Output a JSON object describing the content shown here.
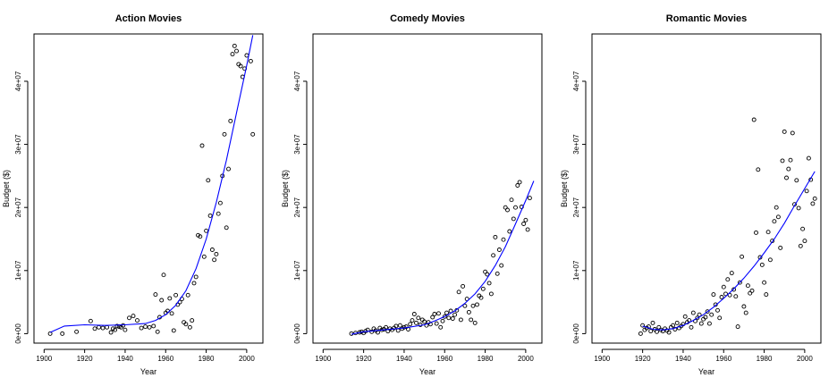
{
  "chart_data": [
    {
      "type": "scatter",
      "title": "Action Movies",
      "xlabel": "Year",
      "ylabel": "Budget ($)",
      "xlim": [
        1895,
        2008
      ],
      "ylim": [
        -1500000,
        47500000
      ],
      "xticks": [
        1900,
        1920,
        1940,
        1960,
        1980,
        2000
      ],
      "yticks": [
        0,
        10000000,
        20000000,
        30000000,
        40000000
      ],
      "ytick_labels": [
        "0e+00",
        "1e+07",
        "2e+07",
        "3e+07",
        "4e+07"
      ],
      "grid": false,
      "points_color": "#000000",
      "smooth_color": "#0000ff",
      "points": [
        [
          1903,
          0
        ],
        [
          1909,
          0
        ],
        [
          1916,
          300000
        ],
        [
          1923,
          2000000
        ],
        [
          1925,
          800000
        ],
        [
          1927,
          1000000
        ],
        [
          1929,
          900000
        ],
        [
          1931,
          1000000
        ],
        [
          1933,
          200000
        ],
        [
          1934,
          800000
        ],
        [
          1935,
          600000
        ],
        [
          1936,
          1200000
        ],
        [
          1937,
          1100000
        ],
        [
          1938,
          1000000
        ],
        [
          1939,
          1300000
        ],
        [
          1940,
          600000
        ],
        [
          1942,
          2500000
        ],
        [
          1944,
          2800000
        ],
        [
          1946,
          2100000
        ],
        [
          1948,
          900000
        ],
        [
          1950,
          1100000
        ],
        [
          1952,
          1000000
        ],
        [
          1954,
          1200000
        ],
        [
          1955,
          6200000
        ],
        [
          1956,
          300000
        ],
        [
          1957,
          2600000
        ],
        [
          1958,
          5300000
        ],
        [
          1959,
          9300000
        ],
        [
          1960,
          3300000
        ],
        [
          1961,
          3600000
        ],
        [
          1962,
          5600000
        ],
        [
          1963,
          3200000
        ],
        [
          1964,
          500000
        ],
        [
          1965,
          6100000
        ],
        [
          1966,
          4600000
        ],
        [
          1967,
          5000000
        ],
        [
          1968,
          5500000
        ],
        [
          1969,
          1800000
        ],
        [
          1970,
          1500000
        ],
        [
          1971,
          6100000
        ],
        [
          1972,
          1000000
        ],
        [
          1973,
          2100000
        ],
        [
          1974,
          8000000
        ],
        [
          1975,
          9000000
        ],
        [
          1976,
          15600000
        ],
        [
          1977,
          15400000
        ],
        [
          1978,
          29800000
        ],
        [
          1979,
          12200000
        ],
        [
          1980,
          16300000
        ],
        [
          1981,
          24300000
        ],
        [
          1982,
          18700000
        ],
        [
          1983,
          13300000
        ],
        [
          1984,
          11700000
        ],
        [
          1985,
          12600000
        ],
        [
          1986,
          19000000
        ],
        [
          1987,
          20700000
        ],
        [
          1988,
          25000000
        ],
        [
          1989,
          31600000
        ],
        [
          1990,
          16800000
        ],
        [
          1991,
          26100000
        ],
        [
          1992,
          33700000
        ],
        [
          1993,
          44300000
        ],
        [
          1994,
          45600000
        ],
        [
          1995,
          44800000
        ],
        [
          1996,
          42700000
        ],
        [
          1997,
          42400000
        ],
        [
          1998,
          40700000
        ],
        [
          1999,
          42000000
        ],
        [
          2000,
          44100000
        ],
        [
          2002,
          43200000
        ],
        [
          2003,
          31600000
        ]
      ],
      "smooth_curve": [
        [
          1903,
          200000
        ],
        [
          1910,
          1200000
        ],
        [
          1920,
          1400000
        ],
        [
          1930,
          1300000
        ],
        [
          1940,
          1400000
        ],
        [
          1950,
          1600000
        ],
        [
          1955,
          2100000
        ],
        [
          1960,
          3000000
        ],
        [
          1965,
          4500000
        ],
        [
          1970,
          6800000
        ],
        [
          1975,
          10300000
        ],
        [
          1980,
          15000000
        ],
        [
          1985,
          20800000
        ],
        [
          1990,
          27500000
        ],
        [
          1995,
          35000000
        ],
        [
          2000,
          42500000
        ],
        [
          2003,
          47300000
        ]
      ]
    },
    {
      "type": "scatter",
      "title": "Comedy Movies",
      "xlabel": "Year",
      "ylabel": "Budget ($)",
      "xlim": [
        1895,
        2008
      ],
      "ylim": [
        -1500000,
        47500000
      ],
      "xticks": [
        1900,
        1920,
        1940,
        1960,
        1980,
        2000
      ],
      "yticks": [
        0,
        10000000,
        20000000,
        30000000,
        40000000
      ],
      "ytick_labels": [
        "0e+00",
        "1e+07",
        "2e+07",
        "3e+07",
        "4e+07"
      ],
      "grid": false,
      "points_color": "#000000",
      "smooth_color": "#0000ff",
      "points": [
        [
          1914,
          0
        ],
        [
          1916,
          100000
        ],
        [
          1918,
          200000
        ],
        [
          1919,
          300000
        ],
        [
          1920,
          100000
        ],
        [
          1921,
          400000
        ],
        [
          1922,
          600000
        ],
        [
          1924,
          300000
        ],
        [
          1925,
          800000
        ],
        [
          1926,
          500000
        ],
        [
          1927,
          200000
        ],
        [
          1928,
          900000
        ],
        [
          1929,
          600000
        ],
        [
          1930,
          700000
        ],
        [
          1931,
          1000000
        ],
        [
          1932,
          400000
        ],
        [
          1933,
          800000
        ],
        [
          1934,
          600000
        ],
        [
          1935,
          900000
        ],
        [
          1936,
          1200000
        ],
        [
          1937,
          500000
        ],
        [
          1938,
          1300000
        ],
        [
          1939,
          800000
        ],
        [
          1940,
          1000000
        ],
        [
          1941,
          1100000
        ],
        [
          1942,
          700000
        ],
        [
          1943,
          1500000
        ],
        [
          1944,
          2100000
        ],
        [
          1945,
          3100000
        ],
        [
          1946,
          1700000
        ],
        [
          1947,
          2500000
        ],
        [
          1948,
          1400000
        ],
        [
          1949,
          2200000
        ],
        [
          1950,
          1900000
        ],
        [
          1951,
          1300000
        ],
        [
          1952,
          1800000
        ],
        [
          1953,
          1500000
        ],
        [
          1954,
          2600000
        ],
        [
          1955,
          3100000
        ],
        [
          1956,
          1600000
        ],
        [
          1957,
          3200000
        ],
        [
          1958,
          1000000
        ],
        [
          1959,
          2000000
        ],
        [
          1960,
          2700000
        ],
        [
          1961,
          3300000
        ],
        [
          1962,
          2500000
        ],
        [
          1963,
          3600000
        ],
        [
          1964,
          2400000
        ],
        [
          1965,
          3000000
        ],
        [
          1966,
          3700000
        ],
        [
          1967,
          6600000
        ],
        [
          1968,
          2200000
        ],
        [
          1969,
          7500000
        ],
        [
          1970,
          4400000
        ],
        [
          1971,
          5500000
        ],
        [
          1972,
          3400000
        ],
        [
          1973,
          2200000
        ],
        [
          1974,
          4400000
        ],
        [
          1975,
          1700000
        ],
        [
          1976,
          4600000
        ],
        [
          1977,
          6000000
        ],
        [
          1978,
          5700000
        ],
        [
          1979,
          7100000
        ],
        [
          1980,
          9800000
        ],
        [
          1981,
          9400000
        ],
        [
          1982,
          8000000
        ],
        [
          1983,
          6300000
        ],
        [
          1984,
          12400000
        ],
        [
          1985,
          15300000
        ],
        [
          1986,
          9500000
        ],
        [
          1987,
          13300000
        ],
        [
          1988,
          10800000
        ],
        [
          1989,
          14900000
        ],
        [
          1990,
          20000000
        ],
        [
          1991,
          19600000
        ],
        [
          1992,
          16200000
        ],
        [
          1993,
          21200000
        ],
        [
          1994,
          18200000
        ],
        [
          1995,
          20000000
        ],
        [
          1996,
          23500000
        ],
        [
          1997,
          24000000
        ],
        [
          1998,
          20100000
        ],
        [
          1999,
          17400000
        ],
        [
          2000,
          18000000
        ],
        [
          2001,
          16500000
        ],
        [
          2002,
          21500000
        ]
      ],
      "smooth_curve": [
        [
          1914,
          -100000
        ],
        [
          1920,
          300000
        ],
        [
          1930,
          600000
        ],
        [
          1940,
          900000
        ],
        [
          1950,
          1400000
        ],
        [
          1955,
          2000000
        ],
        [
          1960,
          2700000
        ],
        [
          1965,
          3600000
        ],
        [
          1970,
          4800000
        ],
        [
          1975,
          6300000
        ],
        [
          1980,
          8300000
        ],
        [
          1985,
          10800000
        ],
        [
          1990,
          13800000
        ],
        [
          1995,
          17400000
        ],
        [
          2000,
          21100000
        ],
        [
          2004,
          24200000
        ]
      ]
    },
    {
      "type": "scatter",
      "title": "Romantic Movies",
      "xlabel": "Year",
      "ylabel": "Budget ($)",
      "xlim": [
        1895,
        2008
      ],
      "ylim": [
        -1500000,
        47500000
      ],
      "xticks": [
        1900,
        1920,
        1940,
        1960,
        1980,
        2000
      ],
      "yticks": [
        0,
        10000000,
        20000000,
        30000000,
        40000000
      ],
      "ytick_labels": [
        "0e+00",
        "1e+07",
        "2e+07",
        "3e+07",
        "4e+07"
      ],
      "grid": false,
      "points_color": "#000000",
      "smooth_color": "#0000ff",
      "points": [
        [
          1919,
          0
        ],
        [
          1920,
          1300000
        ],
        [
          1921,
          600000
        ],
        [
          1922,
          900000
        ],
        [
          1923,
          1100000
        ],
        [
          1924,
          400000
        ],
        [
          1925,
          1700000
        ],
        [
          1926,
          700000
        ],
        [
          1927,
          300000
        ],
        [
          1928,
          1000000
        ],
        [
          1929,
          600000
        ],
        [
          1930,
          400000
        ],
        [
          1931,
          800000
        ],
        [
          1932,
          500000
        ],
        [
          1933,
          200000
        ],
        [
          1934,
          1000000
        ],
        [
          1935,
          1300000
        ],
        [
          1936,
          700000
        ],
        [
          1937,
          1700000
        ],
        [
          1938,
          900000
        ],
        [
          1939,
          1200000
        ],
        [
          1940,
          1500000
        ],
        [
          1941,
          2700000
        ],
        [
          1942,
          1800000
        ],
        [
          1943,
          2100000
        ],
        [
          1944,
          1000000
        ],
        [
          1945,
          3300000
        ],
        [
          1946,
          2000000
        ],
        [
          1947,
          2500000
        ],
        [
          1948,
          3000000
        ],
        [
          1949,
          1600000
        ],
        [
          1950,
          2300000
        ],
        [
          1951,
          2600000
        ],
        [
          1952,
          3500000
        ],
        [
          1953,
          1600000
        ],
        [
          1954,
          3000000
        ],
        [
          1955,
          6200000
        ],
        [
          1956,
          4600000
        ],
        [
          1957,
          3700000
        ],
        [
          1958,
          2500000
        ],
        [
          1959,
          5800000
        ],
        [
          1960,
          7400000
        ],
        [
          1961,
          6300000
        ],
        [
          1962,
          8600000
        ],
        [
          1963,
          6100000
        ],
        [
          1964,
          9600000
        ],
        [
          1965,
          7000000
        ],
        [
          1966,
          5900000
        ],
        [
          1967,
          1100000
        ],
        [
          1968,
          8100000
        ],
        [
          1969,
          12200000
        ],
        [
          1970,
          4300000
        ],
        [
          1971,
          3300000
        ],
        [
          1972,
          7600000
        ],
        [
          1973,
          6400000
        ],
        [
          1974,
          6800000
        ],
        [
          1975,
          33900000
        ],
        [
          1976,
          16000000
        ],
        [
          1977,
          26000000
        ],
        [
          1978,
          12100000
        ],
        [
          1979,
          10900000
        ],
        [
          1980,
          8100000
        ],
        [
          1981,
          6200000
        ],
        [
          1982,
          16100000
        ],
        [
          1983,
          11700000
        ],
        [
          1984,
          14700000
        ],
        [
          1985,
          17800000
        ],
        [
          1986,
          20000000
        ],
        [
          1987,
          18500000
        ],
        [
          1988,
          13600000
        ],
        [
          1989,
          27400000
        ],
        [
          1990,
          32000000
        ],
        [
          1991,
          24700000
        ],
        [
          1992,
          26100000
        ],
        [
          1993,
          27500000
        ],
        [
          1994,
          31800000
        ],
        [
          1995,
          20500000
        ],
        [
          1996,
          24300000
        ],
        [
          1997,
          19900000
        ],
        [
          1998,
          13900000
        ],
        [
          1999,
          16600000
        ],
        [
          2000,
          14700000
        ],
        [
          2001,
          22600000
        ],
        [
          2002,
          27800000
        ],
        [
          2003,
          24400000
        ],
        [
          2004,
          20600000
        ],
        [
          2005,
          21400000
        ]
      ],
      "smooth_curve": [
        [
          1920,
          1200000
        ],
        [
          1925,
          700000
        ],
        [
          1930,
          600000
        ],
        [
          1935,
          800000
        ],
        [
          1940,
          1300000
        ],
        [
          1945,
          2100000
        ],
        [
          1950,
          3000000
        ],
        [
          1955,
          4200000
        ],
        [
          1960,
          5600000
        ],
        [
          1965,
          7100000
        ],
        [
          1970,
          8800000
        ],
        [
          1975,
          10700000
        ],
        [
          1980,
          12800000
        ],
        [
          1985,
          15000000
        ],
        [
          1990,
          17500000
        ],
        [
          1995,
          20300000
        ],
        [
          2000,
          23000000
        ],
        [
          2005,
          25700000
        ]
      ]
    }
  ]
}
